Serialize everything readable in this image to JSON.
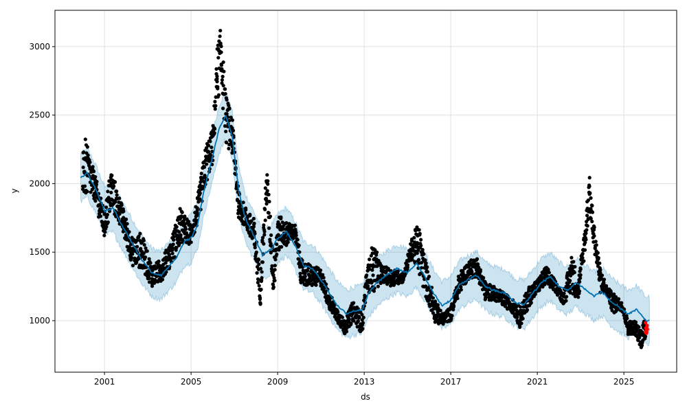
{
  "chart_data": {
    "type": "scatter",
    "title": "",
    "xlabel": "ds",
    "ylabel": "y",
    "xlim": [
      1998.71,
      2027.44
    ],
    "ylim": [
      624,
      3265
    ],
    "grid": true,
    "x_ticks": [
      2001,
      2005,
      2009,
      2013,
      2017,
      2021,
      2025
    ],
    "x_tick_labels": [
      "2001",
      "2005",
      "2009",
      "2013",
      "2017",
      "2021",
      "2025"
    ],
    "y_ticks": [
      1000,
      1500,
      2000,
      2500,
      3000
    ],
    "y_tick_labels": [
      "1000",
      "1500",
      "2000",
      "2500",
      "3000"
    ],
    "colors": {
      "observed": "#000000",
      "forecast": "#0072B2",
      "interval": "#0072B2",
      "highlight": "#ff0000"
    },
    "forecast_interval_halfwidth": 175,
    "yhat": [
      [
        1999.9,
        2040
      ],
      [
        2000.2,
        2080
      ],
      [
        2000.6,
        1960
      ],
      [
        2001.0,
        1800
      ],
      [
        2001.4,
        1820
      ],
      [
        2001.8,
        1700
      ],
      [
        2002.3,
        1560
      ],
      [
        2002.7,
        1450
      ],
      [
        2003.2,
        1350
      ],
      [
        2003.6,
        1330
      ],
      [
        2004.0,
        1400
      ],
      [
        2004.3,
        1450
      ],
      [
        2004.7,
        1580
      ],
      [
        2005.0,
        1600
      ],
      [
        2005.3,
        1700
      ],
      [
        2005.6,
        1950
      ],
      [
        2006.0,
        2200
      ],
      [
        2006.3,
        2400
      ],
      [
        2006.6,
        2500
      ],
      [
        2006.9,
        2350
      ],
      [
        2007.2,
        1950
      ],
      [
        2007.5,
        1750
      ],
      [
        2007.9,
        1620
      ],
      [
        2008.3,
        1480
      ],
      [
        2008.7,
        1520
      ],
      [
        2009.0,
        1600
      ],
      [
        2009.4,
        1650
      ],
      [
        2009.8,
        1550
      ],
      [
        2010.2,
        1400
      ],
      [
        2010.6,
        1380
      ],
      [
        2011.0,
        1300
      ],
      [
        2011.4,
        1200
      ],
      [
        2011.8,
        1100
      ],
      [
        2012.2,
        1050
      ],
      [
        2012.5,
        1070
      ],
      [
        2012.9,
        1080
      ],
      [
        2013.2,
        1200
      ],
      [
        2013.6,
        1280
      ],
      [
        2014.0,
        1330
      ],
      [
        2014.5,
        1380
      ],
      [
        2015.0,
        1350
      ],
      [
        2015.4,
        1420
      ],
      [
        2015.8,
        1320
      ],
      [
        2016.2,
        1200
      ],
      [
        2016.6,
        1110
      ],
      [
        2017.0,
        1150
      ],
      [
        2017.4,
        1260
      ],
      [
        2017.8,
        1300
      ],
      [
        2018.2,
        1330
      ],
      [
        2018.6,
        1250
      ],
      [
        2019.0,
        1220
      ],
      [
        2019.5,
        1200
      ],
      [
        2020.0,
        1130
      ],
      [
        2020.4,
        1120
      ],
      [
        2020.8,
        1200
      ],
      [
        2021.2,
        1280
      ],
      [
        2021.6,
        1320
      ],
      [
        2022.0,
        1250
      ],
      [
        2022.4,
        1220
      ],
      [
        2022.8,
        1280
      ],
      [
        2023.2,
        1230
      ],
      [
        2023.6,
        1180
      ],
      [
        2024.0,
        1210
      ],
      [
        2024.4,
        1140
      ],
      [
        2024.8,
        1090
      ],
      [
        2025.2,
        1050
      ],
      [
        2025.6,
        1080
      ],
      [
        2026.0,
        1000
      ],
      [
        2026.2,
        1000
      ]
    ],
    "observed_ranges": [
      [
        2000.0,
        1900,
        2400
      ],
      [
        2000.5,
        1900,
        2100
      ],
      [
        2001.0,
        1600,
        1800
      ],
      [
        2001.3,
        1800,
        2120
      ],
      [
        2001.7,
        1700,
        1900
      ],
      [
        2002.0,
        1550,
        1750
      ],
      [
        2002.3,
        1400,
        1600
      ],
      [
        2002.7,
        1380,
        1650
      ],
      [
        2003.2,
        1250,
        1400
      ],
      [
        2003.6,
        1280,
        1450
      ],
      [
        2004.0,
        1380,
        1560
      ],
      [
        2004.5,
        1550,
        1820
      ],
      [
        2005.0,
        1560,
        1700
      ],
      [
        2005.3,
        1700,
        1900
      ],
      [
        2005.7,
        2000,
        2300
      ],
      [
        2006.0,
        2150,
        2400
      ],
      [
        2006.2,
        2600,
        3000
      ],
      [
        2006.4,
        2700,
        3150
      ],
      [
        2006.6,
        2300,
        2650
      ],
      [
        2006.9,
        2200,
        2500
      ],
      [
        2007.2,
        1750,
        1950
      ],
      [
        2007.6,
        1650,
        1800
      ],
      [
        2007.9,
        1500,
        1750
      ],
      [
        2008.2,
        1120,
        1350
      ],
      [
        2008.5,
        1850,
        2130
      ],
      [
        2008.8,
        1180,
        1500
      ],
      [
        2009.0,
        1500,
        1780
      ],
      [
        2009.4,
        1550,
        1720
      ],
      [
        2009.8,
        1600,
        1700
      ],
      [
        2010.1,
        1250,
        1450
      ],
      [
        2010.6,
        1250,
        1400
      ],
      [
        2011.0,
        1250,
        1380
      ],
      [
        2011.4,
        1080,
        1200
      ],
      [
        2011.8,
        980,
        1080
      ],
      [
        2012.1,
        900,
        1000
      ],
      [
        2012.5,
        1000,
        1150
      ],
      [
        2012.9,
        900,
        1050
      ],
      [
        2013.1,
        1200,
        1350
      ],
      [
        2013.4,
        1200,
        1580
      ],
      [
        2013.8,
        1280,
        1400
      ],
      [
        2014.3,
        1250,
        1380
      ],
      [
        2014.8,
        1280,
        1350
      ],
      [
        2015.2,
        1450,
        1600
      ],
      [
        2015.5,
        1350,
        1720
      ],
      [
        2015.9,
        1150,
        1400
      ],
      [
        2016.3,
        980,
        1150
      ],
      [
        2016.6,
        970,
        1050
      ],
      [
        2017.0,
        1000,
        1100
      ],
      [
        2017.4,
        1200,
        1350
      ],
      [
        2017.8,
        1300,
        1430
      ],
      [
        2018.2,
        1320,
        1470
      ],
      [
        2018.6,
        1150,
        1280
      ],
      [
        2019.0,
        1150,
        1250
      ],
      [
        2019.5,
        1100,
        1200
      ],
      [
        2019.9,
        1050,
        1150
      ],
      [
        2020.2,
        950,
        1100
      ],
      [
        2020.6,
        1100,
        1250
      ],
      [
        2021.0,
        1200,
        1300
      ],
      [
        2021.4,
        1250,
        1400
      ],
      [
        2021.8,
        1220,
        1300
      ],
      [
        2022.2,
        1120,
        1200
      ],
      [
        2022.6,
        1200,
        1500
      ],
      [
        2022.9,
        1150,
        1300
      ],
      [
        2023.2,
        1500,
        1700
      ],
      [
        2023.4,
        1800,
        2080
      ],
      [
        2023.6,
        1550,
        1750
      ],
      [
        2023.9,
        1200,
        1400
      ],
      [
        2024.2,
        1200,
        1250
      ],
      [
        2024.5,
        1050,
        1200
      ],
      [
        2024.9,
        1080,
        1150
      ],
      [
        2025.2,
        900,
        1000
      ],
      [
        2025.5,
        900,
        1000
      ],
      [
        2025.8,
        800,
        950
      ],
      [
        2026.0,
        850,
        1020
      ]
    ],
    "highlight_range": [
      [
        2026.0,
        900,
        1020
      ],
      [
        2026.1,
        910,
        1000
      ]
    ]
  }
}
